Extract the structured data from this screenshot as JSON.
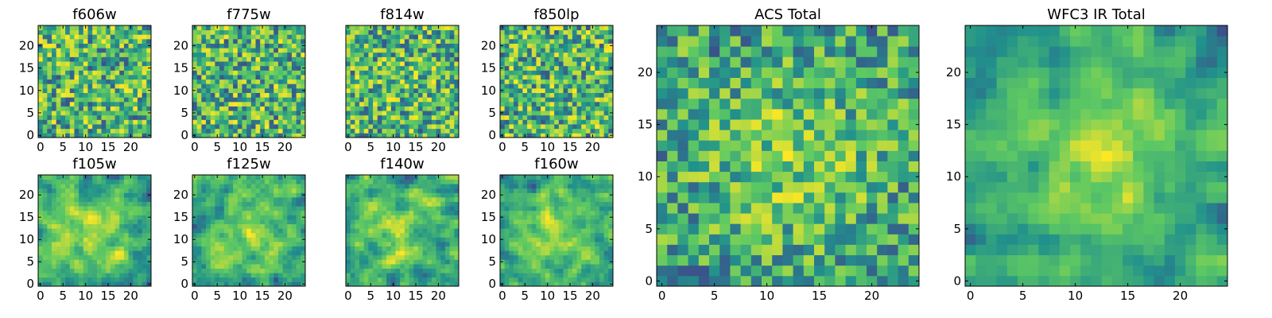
{
  "chart_data": [
    {
      "type": "heatmap",
      "title": "f606w",
      "grid": [
        25,
        25
      ],
      "xticks": [
        "0",
        "5",
        "10",
        "15",
        "20"
      ],
      "yticks": [
        "0",
        "5",
        "10",
        "15",
        "20"
      ],
      "seed": 11,
      "smooth": 0,
      "central_boost": 0.0
    },
    {
      "type": "heatmap",
      "title": "f775w",
      "grid": [
        25,
        25
      ],
      "xticks": [
        "0",
        "5",
        "10",
        "15",
        "20"
      ],
      "yticks": [
        "0",
        "5",
        "10",
        "15",
        "20"
      ],
      "seed": 23,
      "smooth": 0,
      "central_boost": 0.0
    },
    {
      "type": "heatmap",
      "title": "f814w",
      "grid": [
        25,
        25
      ],
      "xticks": [
        "0",
        "5",
        "10",
        "15",
        "20"
      ],
      "yticks": [],
      "seed": 37,
      "smooth": 0,
      "central_boost": 0.05
    },
    {
      "type": "heatmap",
      "title": "f850lp",
      "grid": [
        25,
        25
      ],
      "xticks": [
        "0",
        "5",
        "10",
        "15",
        "20"
      ],
      "yticks": [
        "0",
        "5",
        "10",
        "15",
        "20"
      ],
      "seed": 41,
      "smooth": 0,
      "central_boost": 0.0
    },
    {
      "type": "heatmap",
      "title": "f105w",
      "grid": [
        25,
        25
      ],
      "xticks": [
        "0",
        "5",
        "10",
        "15",
        "20"
      ],
      "yticks": [
        "0",
        "5",
        "10",
        "15",
        "20"
      ],
      "seed": 53,
      "smooth": 1,
      "central_boost": 0.25
    },
    {
      "type": "heatmap",
      "title": "f125w",
      "grid": [
        25,
        25
      ],
      "xticks": [
        "0",
        "5",
        "10",
        "15",
        "20"
      ],
      "yticks": [
        "0",
        "5",
        "10",
        "15",
        "20"
      ],
      "seed": 67,
      "smooth": 1,
      "central_boost": 0.2
    },
    {
      "type": "heatmap",
      "title": "f140w",
      "grid": [
        25,
        25
      ],
      "xticks": [
        "0",
        "5",
        "10",
        "15",
        "20"
      ],
      "yticks": [],
      "seed": 71,
      "smooth": 1,
      "central_boost": 0.2
    },
    {
      "type": "heatmap",
      "title": "f160w",
      "grid": [
        25,
        25
      ],
      "xticks": [
        "0",
        "5",
        "10",
        "15",
        "20"
      ],
      "yticks": [
        "0",
        "5",
        "10",
        "15",
        "20"
      ],
      "seed": 89,
      "smooth": 1,
      "central_boost": 0.3
    },
    {
      "type": "heatmap",
      "title": "ACS Total",
      "grid": [
        25,
        25
      ],
      "xticks": [
        "0",
        "5",
        "10",
        "15",
        "20"
      ],
      "yticks": [
        "0",
        "5",
        "10",
        "15",
        "20"
      ],
      "seed": 97,
      "smooth": 0,
      "central_boost": 0.35
    },
    {
      "type": "heatmap",
      "title": "WFC3 IR Total",
      "grid": [
        25,
        25
      ],
      "xticks": [
        "0",
        "5",
        "10",
        "15",
        "20"
      ],
      "yticks": [
        "0",
        "5",
        "10",
        "15",
        "20"
      ],
      "seed": 103,
      "smooth": 1,
      "central_boost": 0.5
    }
  ],
  "colors": {
    "colormap": "viridis",
    "stops": [
      "#440154",
      "#3b528b",
      "#21918c",
      "#5ec962",
      "#fde725"
    ]
  }
}
